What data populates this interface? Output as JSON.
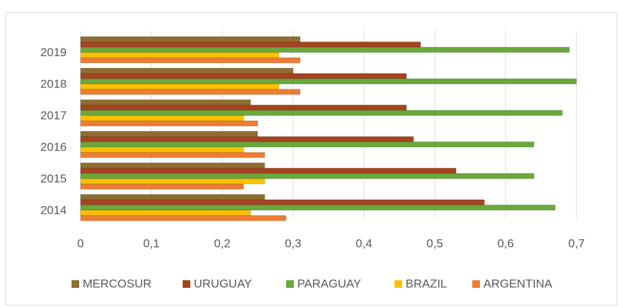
{
  "chart_data": {
    "type": "bar",
    "orientation": "horizontal",
    "categories": [
      "2014",
      "2015",
      "2016",
      "2017",
      "2018",
      "2019"
    ],
    "series": [
      {
        "name": "MERCOSUR",
        "color": "#8e6d2f",
        "values": [
          0.26,
          0.26,
          0.25,
          0.24,
          0.3,
          0.31
        ]
      },
      {
        "name": "URUGUAY",
        "color": "#a5431f",
        "values": [
          0.57,
          0.53,
          0.47,
          0.46,
          0.46,
          0.48
        ]
      },
      {
        "name": "PARAGUAY",
        "color": "#6aa83c",
        "values": [
          0.67,
          0.64,
          0.64,
          0.68,
          0.7,
          0.69
        ]
      },
      {
        "name": "BRAZIL",
        "color": "#ffc000",
        "values": [
          0.24,
          0.26,
          0.23,
          0.23,
          0.28,
          0.28
        ]
      },
      {
        "name": "ARGENTINA",
        "color": "#ed7d31",
        "values": [
          0.29,
          0.23,
          0.26,
          0.25,
          0.31,
          0.31
        ]
      }
    ],
    "xlim": [
      0,
      0.7
    ],
    "xticks": [
      0,
      {
        "value": 0.1,
        "label": "0,1"
      },
      {
        "value": 0.2,
        "label": "0,2"
      },
      {
        "value": 0.3,
        "label": "0,3"
      },
      {
        "value": 0.4,
        "label": "0,4"
      },
      {
        "value": 0.5,
        "label": "0,5"
      },
      {
        "value": 0.6,
        "label": "0,6"
      },
      {
        "value": 0.7,
        "label": "0,7"
      }
    ],
    "grid": true,
    "legend": "bottom"
  }
}
